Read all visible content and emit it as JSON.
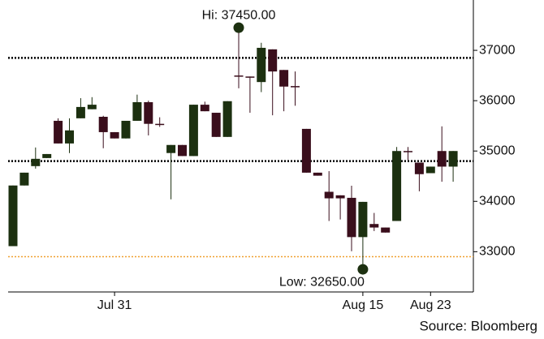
{
  "chart_data": {
    "type": "candlestick",
    "categories": [
      null,
      null,
      null,
      null,
      null,
      null,
      null,
      null,
      null,
      "Jul 31",
      null,
      null,
      null,
      null,
      null,
      null,
      null,
      null,
      null,
      null,
      null,
      null,
      null,
      null,
      null,
      null,
      null,
      null,
      null,
      null,
      null,
      "Aug 15",
      null,
      null,
      null,
      null,
      null,
      "Aug 23",
      null,
      null
    ],
    "open": [
      33110,
      34315,
      34700,
      34860,
      35600,
      35150,
      35650,
      35830,
      35680,
      35375,
      35250,
      35600,
      35970,
      35540,
      34960,
      35120,
      34900,
      35920,
      35760,
      35280,
      36500,
      36480,
      36370,
      37020,
      36610,
      36290,
      35440,
      34570,
      34190,
      34120,
      34070,
      33290,
      33550,
      33480,
      33610,
      35000,
      34770,
      34560,
      35000,
      34690
    ],
    "high": [
      34315,
      34570,
      35070,
      34940,
      35650,
      35650,
      36050,
      36070,
      35700,
      35375,
      35600,
      36120,
      36000,
      35670,
      35120,
      35120,
      35920,
      35980,
      35760,
      35990,
      37450,
      36480,
      37150,
      37020,
      36610,
      36580,
      35440,
      34570,
      34600,
      34120,
      34310,
      33990,
      33770,
      33480,
      35080,
      35080,
      34770,
      34690,
      35490,
      35000
    ],
    "low": [
      33110,
      34315,
      34650,
      34860,
      35150,
      34960,
      35650,
      35830,
      35055,
      35250,
      35250,
      35600,
      35310,
      35480,
      34040,
      34900,
      34900,
      35790,
      35280,
      35280,
      36245,
      35760,
      36170,
      35710,
      35790,
      35900,
      34570,
      34510,
      33610,
      33640,
      33010,
      32650,
      33410,
      33380,
      33610,
      34820,
      34200,
      34560,
      34390,
      34390
    ],
    "close": [
      34315,
      34570,
      34845,
      34940,
      35150,
      35410,
      35875,
      35920,
      35375,
      35250,
      35600,
      35970,
      35540,
      35520,
      35120,
      34900,
      35920,
      35790,
      35280,
      35990,
      36480,
      36460,
      37050,
      36580,
      36280,
      36280,
      34570,
      34510,
      34060,
      34060,
      33290,
      33990,
      33480,
      33380,
      35000,
      34990,
      34540,
      34690,
      34690,
      35000
    ],
    "up_color": "#1c3010",
    "down_color": "#3a0e1c",
    "ylim": [
      32200,
      38000
    ],
    "yticks": [
      33000,
      34000,
      35000,
      36000,
      37000
    ],
    "hlines": [
      {
        "value": 36850,
        "color": "#000000"
      },
      {
        "value": 34800,
        "color": "#000000"
      },
      {
        "value": 32900,
        "color": "#f0a030"
      }
    ],
    "annotations": [
      {
        "text": "Hi: 37450.00",
        "value": 37450
      },
      {
        "text": "Low: 32650.00",
        "value": 32650
      }
    ],
    "source": "Source: Bloomberg"
  }
}
